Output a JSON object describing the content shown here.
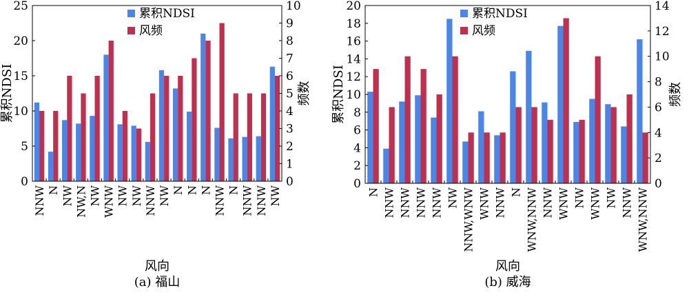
{
  "chart_data": [
    {
      "type": "bar",
      "caption": "(a) 福山",
      "xlabel": "风向",
      "ylabel": "累积NDSI",
      "y2label": "频数",
      "ylim": [
        0,
        25
      ],
      "yticks": [
        0,
        5,
        10,
        15,
        20,
        25
      ],
      "y2lim": [
        0,
        10
      ],
      "y2ticks": [
        0,
        1,
        2,
        3,
        4,
        5,
        6,
        7,
        8,
        9,
        10
      ],
      "legend_position": "top-center",
      "categories": [
        "NNW",
        "N",
        "NW",
        "NW,N",
        "NW",
        "WNW",
        "NW",
        "NW",
        "NNW",
        "NW",
        "N",
        "N",
        "N",
        "NNW",
        "N",
        "NNW",
        "NNW",
        "NW"
      ],
      "series": [
        {
          "name": "累积NDSI",
          "axis": "left",
          "color": "#4a86e8",
          "values": [
            11.2,
            4.2,
            8.7,
            8.2,
            9.3,
            18.0,
            8.1,
            7.9,
            5.6,
            15.8,
            13.2,
            9.9,
            21.0,
            7.6,
            6.1,
            6.3,
            6.4,
            16.3
          ]
        },
        {
          "name": "风频",
          "axis": "right",
          "color": "#c0304e",
          "values": [
            4,
            4,
            6,
            5,
            6,
            8,
            4,
            3,
            5,
            6,
            6,
            7,
            8,
            9,
            5,
            5,
            5,
            6
          ]
        }
      ]
    },
    {
      "type": "bar",
      "caption": "(b) 威海",
      "xlabel": "风向",
      "ylabel": "累积NDSI",
      "y2label": "频数",
      "ylim": [
        0,
        20
      ],
      "yticks": [
        0,
        2,
        4,
        6,
        8,
        10,
        12,
        14,
        16,
        18,
        20
      ],
      "y2lim": [
        0,
        14
      ],
      "y2ticks": [
        0,
        2,
        4,
        6,
        8,
        10,
        12,
        14
      ],
      "legend_position": "top-center",
      "categories": [
        "N",
        "NNW",
        "NNW",
        "NNW",
        "NNW",
        "NW",
        "NNW,WNW",
        "WNW",
        "NNW",
        "N",
        "WNW,NNW",
        "NNW",
        "WNW",
        "NW",
        "WNW",
        "NW",
        "NNW",
        "WNW,NNW"
      ],
      "series": [
        {
          "name": "累积NDSI",
          "axis": "left",
          "color": "#4a86e8",
          "values": [
            10.3,
            3.9,
            9.2,
            9.9,
            7.4,
            18.5,
            4.7,
            8.1,
            5.4,
            12.6,
            14.9,
            9.1,
            17.7,
            6.9,
            9.5,
            8.9,
            6.4,
            16.2
          ]
        },
        {
          "name": "风频",
          "axis": "right",
          "color": "#c0304e",
          "values": [
            9,
            6,
            10,
            9,
            7,
            10,
            4,
            4,
            4,
            6,
            6,
            5,
            13,
            5,
            10,
            6,
            7,
            4
          ]
        }
      ]
    }
  ]
}
